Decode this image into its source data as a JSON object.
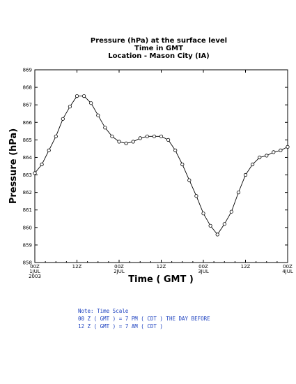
{
  "chart_data": {
    "type": "line",
    "title_lines": [
      "Pressure (hPa) at the surface level",
      "Time in GMT",
      "Location - Mason City (IA)"
    ],
    "ylabel": "Pressure (hPa)",
    "xlabel": "Time ( GMT )",
    "ylim": [
      858,
      869
    ],
    "y_ticks": [
      858,
      859,
      860,
      861,
      862,
      863,
      864,
      865,
      866,
      867,
      868,
      869
    ],
    "xlim": [
      0,
      72
    ],
    "x_ticks": [
      {
        "x": 0,
        "lines": [
          "00Z",
          "1JUL",
          "2003"
        ]
      },
      {
        "x": 12,
        "lines": [
          "12Z"
        ]
      },
      {
        "x": 24,
        "lines": [
          "00Z",
          "2JUL"
        ]
      },
      {
        "x": 36,
        "lines": [
          "12Z"
        ]
      },
      {
        "x": 48,
        "lines": [
          "00Z",
          "3JUL"
        ]
      },
      {
        "x": 60,
        "lines": [
          "12Z"
        ]
      },
      {
        "x": 72,
        "lines": [
          "00Z",
          "4JUL"
        ]
      }
    ],
    "grid": false,
    "series": [
      {
        "marker": "open-circle",
        "points": [
          [
            0,
            863.1
          ],
          [
            2,
            863.6
          ],
          [
            4,
            864.4
          ],
          [
            6,
            865.2
          ],
          [
            8,
            866.2
          ],
          [
            10,
            866.9
          ],
          [
            12,
            867.5
          ],
          [
            14,
            867.5
          ],
          [
            16,
            867.1
          ],
          [
            18,
            866.4
          ],
          [
            20,
            865.7
          ],
          [
            22,
            865.2
          ],
          [
            24,
            864.9
          ],
          [
            26,
            864.8
          ],
          [
            28,
            864.9
          ],
          [
            30,
            865.1
          ],
          [
            32,
            865.2
          ],
          [
            34,
            865.2
          ],
          [
            36,
            865.2
          ],
          [
            38,
            865.0
          ],
          [
            40,
            864.4
          ],
          [
            42,
            863.6
          ],
          [
            44,
            862.7
          ],
          [
            46,
            861.8
          ],
          [
            48,
            860.8
          ],
          [
            50,
            860.1
          ],
          [
            52,
            859.6
          ],
          [
            54,
            860.2
          ],
          [
            56,
            860.9
          ],
          [
            58,
            862.0
          ],
          [
            60,
            863.0
          ],
          [
            62,
            863.6
          ],
          [
            64,
            864.0
          ],
          [
            66,
            864.1
          ],
          [
            68,
            864.3
          ],
          [
            70,
            864.4
          ],
          [
            72,
            864.6
          ]
        ]
      }
    ]
  },
  "note": {
    "lines": [
      "Note: Time Scale",
      "00 Z ( GMT ) = 7 PM ( CDT ) THE DAY BEFORE",
      "12 Z ( GMT ) = 7 AM ( CDT )"
    ]
  },
  "colors": {
    "line": "#000000",
    "note_text": "#1a3fbf"
  }
}
